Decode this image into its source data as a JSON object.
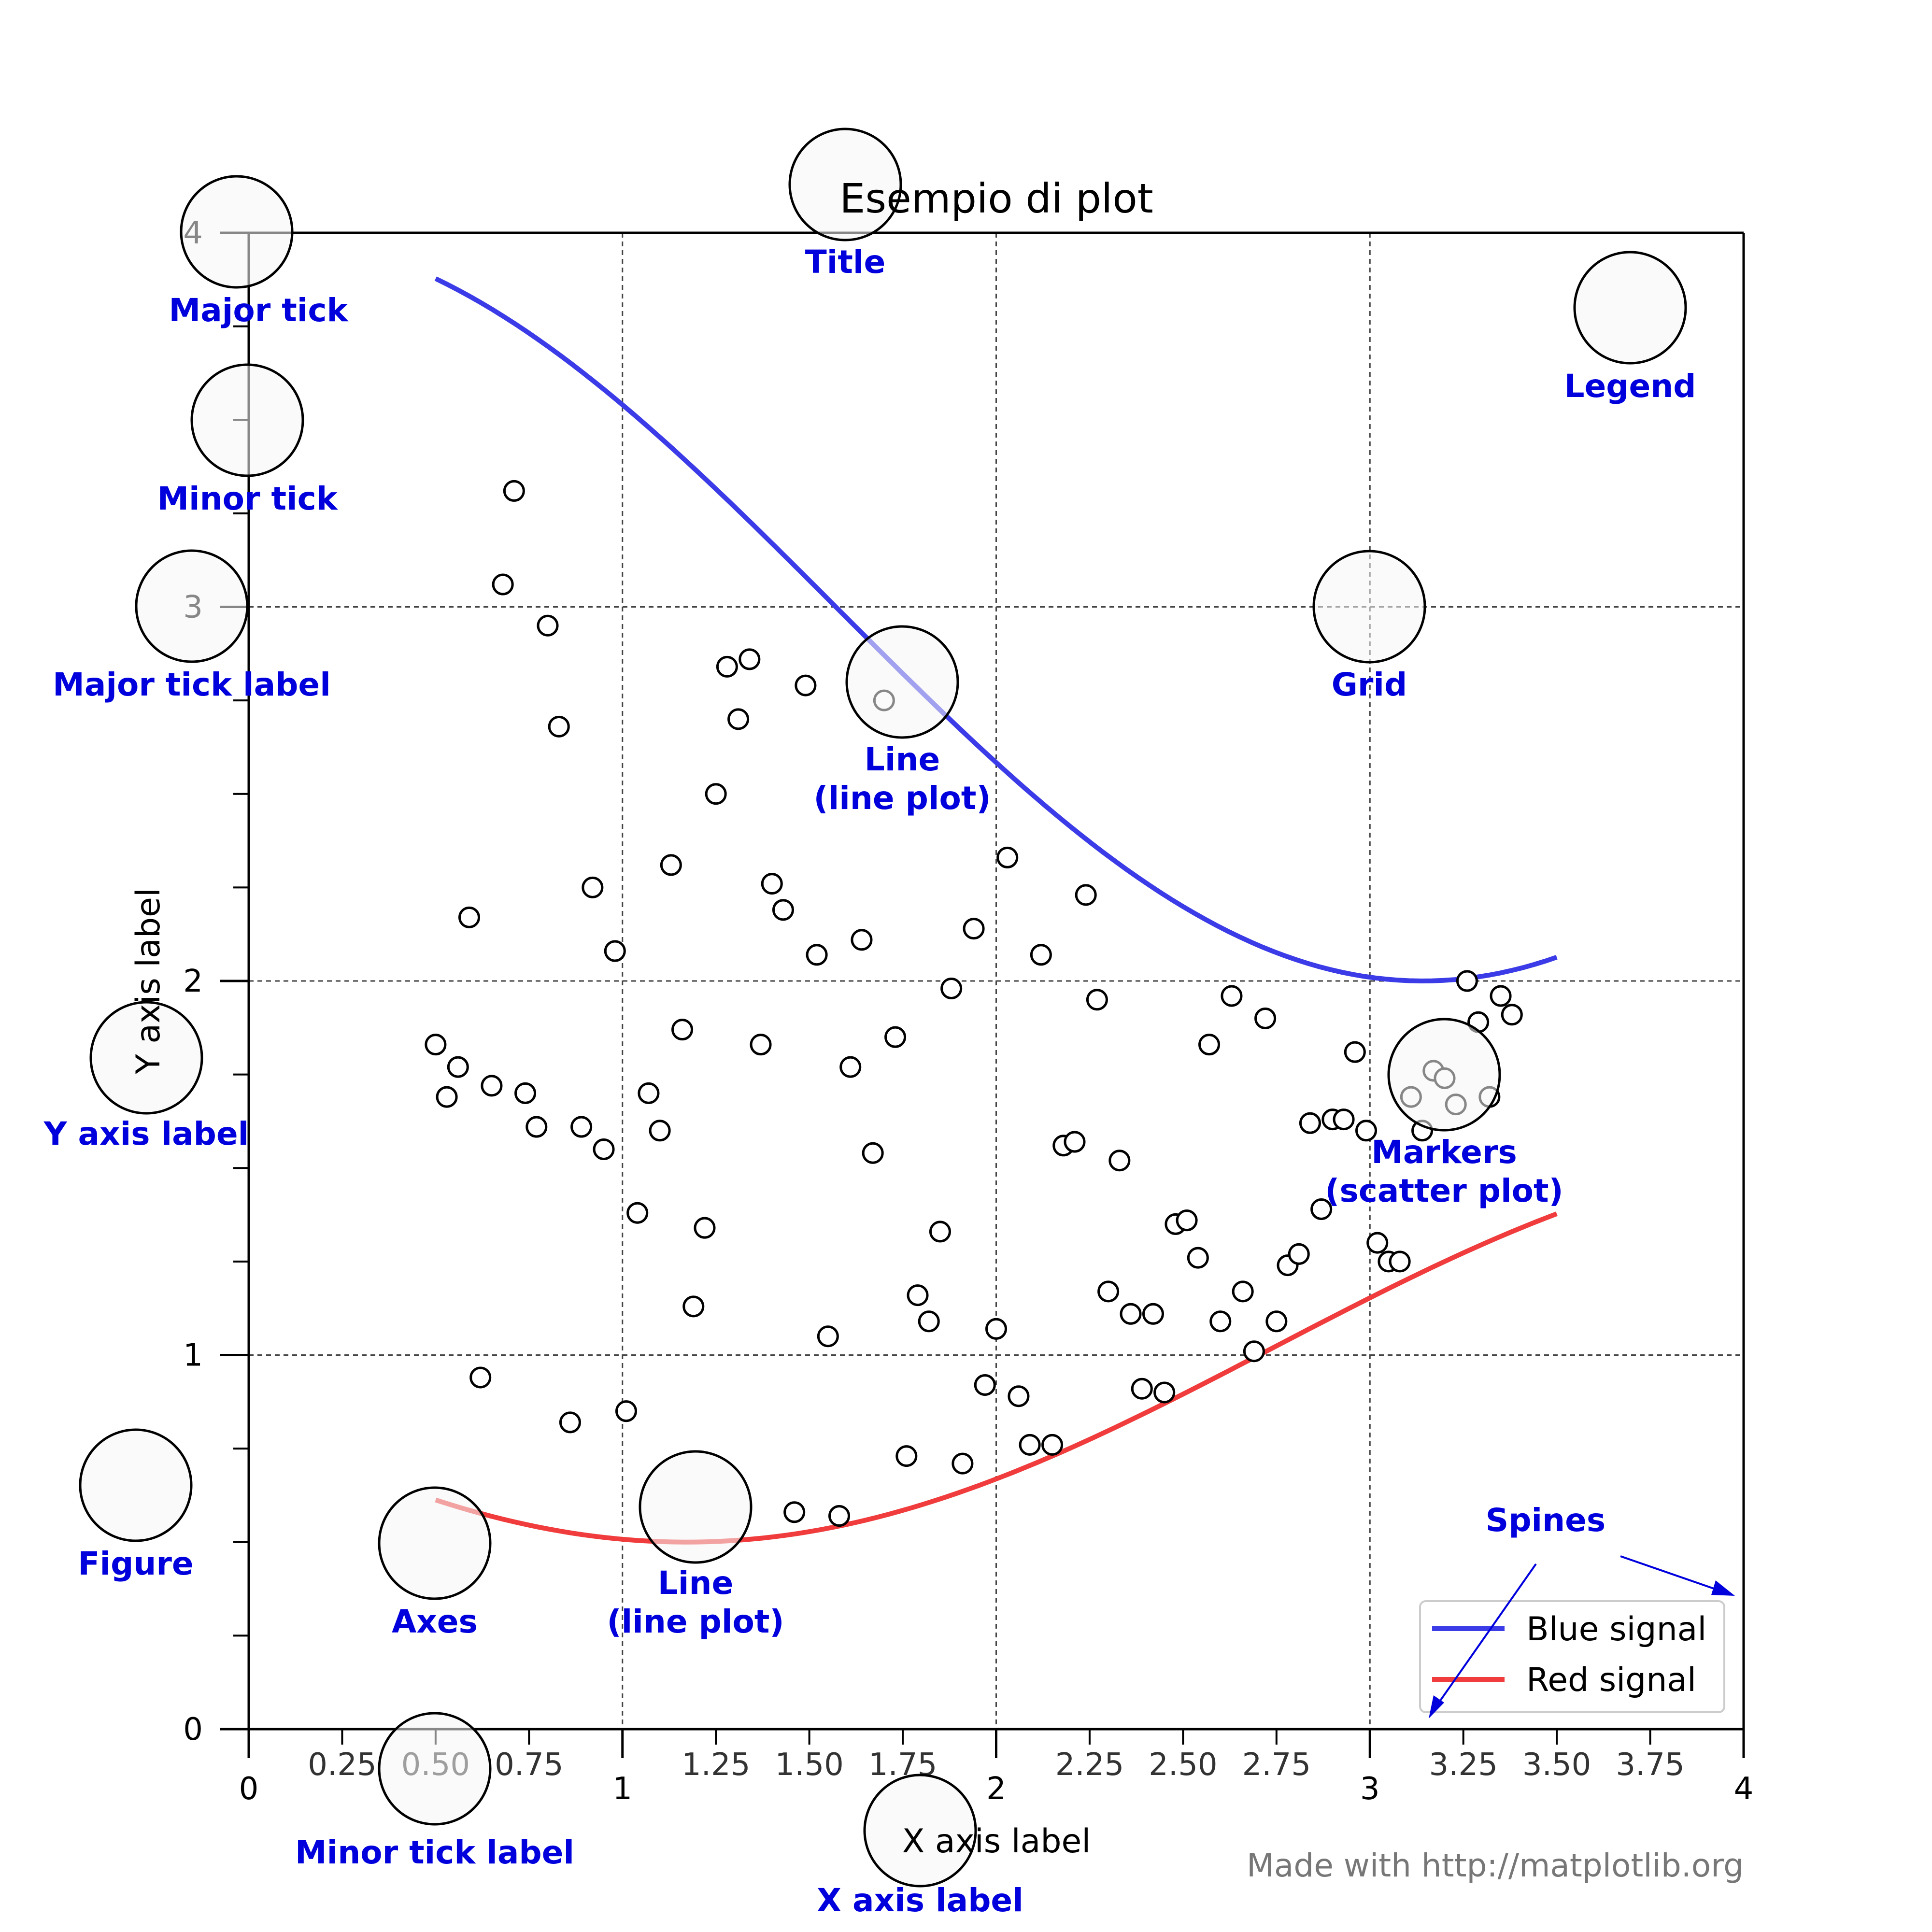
{
  "chart_data": {
    "type": "scatter",
    "title": "Esempio di plot",
    "xlabel": "X axis label",
    "ylabel": "Y axis label",
    "xlim": [
      0,
      4
    ],
    "ylim": [
      0,
      4
    ],
    "grid": true,
    "legend_position": "bottom-right",
    "colors": {
      "blue": "#3b3be8",
      "red": "#f03c3c",
      "annotation": "#0000dd",
      "credit": "#777777"
    },
    "x_major_ticks": [
      {
        "value": 0,
        "label": "0"
      },
      {
        "value": 1,
        "label": "1"
      },
      {
        "value": 2,
        "label": "2"
      },
      {
        "value": 3,
        "label": "3"
      },
      {
        "value": 4,
        "label": "4"
      }
    ],
    "x_minor_ticks": [
      {
        "value": 0.25,
        "label": "0.25"
      },
      {
        "value": 0.5,
        "label": "0.50"
      },
      {
        "value": 0.75,
        "label": "0.75"
      },
      {
        "value": 1.25,
        "label": "1.25"
      },
      {
        "value": 1.5,
        "label": "1.50"
      },
      {
        "value": 1.75,
        "label": "1.75"
      },
      {
        "value": 2.25,
        "label": "2.25"
      },
      {
        "value": 2.5,
        "label": "2.50"
      },
      {
        "value": 2.75,
        "label": "2.75"
      },
      {
        "value": 3.25,
        "label": "3.25"
      },
      {
        "value": 3.5,
        "label": "3.50"
      },
      {
        "value": 3.75,
        "label": "3.75"
      }
    ],
    "y_major_ticks": [
      {
        "value": 0,
        "label": "0"
      },
      {
        "value": 1,
        "label": "1"
      },
      {
        "value": 2,
        "label": "2"
      },
      {
        "value": 3,
        "label": "3"
      },
      {
        "value": 4,
        "label": "4"
      }
    ],
    "y_minor_ticks": [
      0.25,
      0.5,
      0.75,
      1.25,
      1.5,
      1.75,
      2.25,
      2.5,
      2.75,
      3.25,
      3.5,
      3.75
    ],
    "series": [
      {
        "name": "Blue signal",
        "kind": "line",
        "color": "#3b3be8",
        "x_range": [
          0.5,
          3.5
        ],
        "points": 100,
        "formula": "3 + cos(x)"
      },
      {
        "name": "Red signal",
        "kind": "line",
        "color": "#f03c3c",
        "x_range": [
          0.5,
          3.5
        ],
        "points": 100,
        "formula": "1 + cos(x + pi/2)/2 ... approximated"
      },
      {
        "name": "",
        "kind": "scatter",
        "points": [
          [
            0.5,
            1.83
          ],
          [
            0.53,
            1.69
          ],
          [
            0.56,
            1.77
          ],
          [
            0.59,
            2.17
          ],
          [
            0.62,
            0.94
          ],
          [
            0.65,
            1.72
          ],
          [
            0.68,
            3.06
          ],
          [
            0.71,
            3.31
          ],
          [
            0.74,
            1.7
          ],
          [
            0.77,
            1.61
          ],
          [
            0.8,
            2.95
          ],
          [
            0.83,
            2.68
          ],
          [
            0.86,
            0.82
          ],
          [
            0.89,
            1.61
          ],
          [
            0.92,
            2.25
          ],
          [
            0.95,
            1.55
          ],
          [
            0.98,
            2.08
          ],
          [
            1.01,
            0.85
          ],
          [
            1.04,
            1.38
          ],
          [
            1.07,
            1.7
          ],
          [
            1.1,
            1.6
          ],
          [
            1.13,
            2.31
          ],
          [
            1.16,
            1.87
          ],
          [
            1.19,
            1.13
          ],
          [
            1.22,
            1.34
          ],
          [
            1.25,
            2.5
          ],
          [
            1.28,
            2.84
          ],
          [
            1.31,
            2.7
          ],
          [
            1.34,
            2.86
          ],
          [
            1.37,
            1.83
          ],
          [
            1.4,
            2.26
          ],
          [
            1.43,
            2.19
          ],
          [
            1.46,
            0.58
          ],
          [
            1.49,
            2.79
          ],
          [
            1.52,
            2.07
          ],
          [
            1.55,
            1.05
          ],
          [
            1.58,
            0.57
          ],
          [
            1.61,
            1.77
          ],
          [
            1.64,
            2.11
          ],
          [
            1.67,
            1.54
          ],
          [
            1.7,
            2.75
          ],
          [
            1.73,
            1.85
          ],
          [
            1.76,
            0.73
          ],
          [
            1.79,
            1.16
          ],
          [
            1.82,
            1.09
          ],
          [
            1.85,
            1.33
          ],
          [
            1.88,
            1.98
          ],
          [
            1.91,
            0.71
          ],
          [
            1.94,
            2.14
          ],
          [
            1.97,
            0.92
          ],
          [
            2.0,
            1.07
          ],
          [
            2.03,
            2.33
          ],
          [
            2.06,
            0.89
          ],
          [
            2.09,
            0.76
          ],
          [
            2.12,
            2.07
          ],
          [
            2.15,
            0.76
          ],
          [
            2.18,
            1.56
          ],
          [
            2.21,
            1.57
          ],
          [
            2.24,
            2.23
          ],
          [
            2.27,
            1.95
          ],
          [
            2.3,
            1.17
          ],
          [
            2.33,
            1.52
          ],
          [
            2.36,
            1.11
          ],
          [
            2.39,
            0.91
          ],
          [
            2.42,
            1.11
          ],
          [
            2.45,
            0.9
          ],
          [
            2.48,
            1.35
          ],
          [
            2.51,
            1.36
          ],
          [
            2.54,
            1.26
          ],
          [
            2.57,
            1.83
          ],
          [
            2.6,
            1.09
          ],
          [
            2.63,
            1.96
          ],
          [
            2.66,
            1.17
          ],
          [
            2.69,
            1.01
          ],
          [
            2.72,
            1.9
          ],
          [
            2.75,
            1.09
          ],
          [
            2.78,
            1.24
          ],
          [
            2.81,
            1.27
          ],
          [
            2.84,
            1.62
          ],
          [
            2.87,
            1.39
          ],
          [
            2.9,
            1.63
          ],
          [
            2.93,
            1.63
          ],
          [
            2.96,
            1.81
          ],
          [
            2.99,
            1.6
          ],
          [
            3.02,
            1.3
          ],
          [
            3.05,
            1.25
          ],
          [
            3.08,
            1.25
          ],
          [
            3.11,
            1.69
          ],
          [
            3.14,
            1.6
          ],
          [
            3.17,
            1.76
          ],
          [
            3.2,
            1.74
          ],
          [
            3.23,
            1.67
          ],
          [
            3.26,
            2.0
          ],
          [
            3.29,
            1.89
          ],
          [
            3.32,
            1.69
          ],
          [
            3.35,
            1.96
          ],
          [
            3.38,
            1.91
          ]
        ]
      }
    ],
    "legend": [
      "Blue signal",
      "Red signal"
    ]
  },
  "annotations": [
    {
      "key": "major-tick",
      "label": "Major tick"
    },
    {
      "key": "minor-tick",
      "label": "Minor tick"
    },
    {
      "key": "major-tick-label",
      "label": "Major tick label"
    },
    {
      "key": "y-axis-label",
      "label": "Y axis label"
    },
    {
      "key": "figure",
      "label": "Figure"
    },
    {
      "key": "axes",
      "label": "Axes"
    },
    {
      "key": "minor-tick-label",
      "label": "Minor tick label"
    },
    {
      "key": "x-axis-label",
      "label": "X axis label"
    },
    {
      "key": "title",
      "label": "Title"
    },
    {
      "key": "legend",
      "label": "Legend"
    },
    {
      "key": "grid",
      "label": "Grid"
    },
    {
      "key": "line-top",
      "label": "Line\n(line plot)"
    },
    {
      "key": "line-bottom",
      "label": "Line\n(line plot)"
    },
    {
      "key": "markers",
      "label": "Markers\n(scatter plot)"
    },
    {
      "key": "spines",
      "label": "Spines"
    }
  ],
  "credit": "Made with http://matplotlib.org"
}
